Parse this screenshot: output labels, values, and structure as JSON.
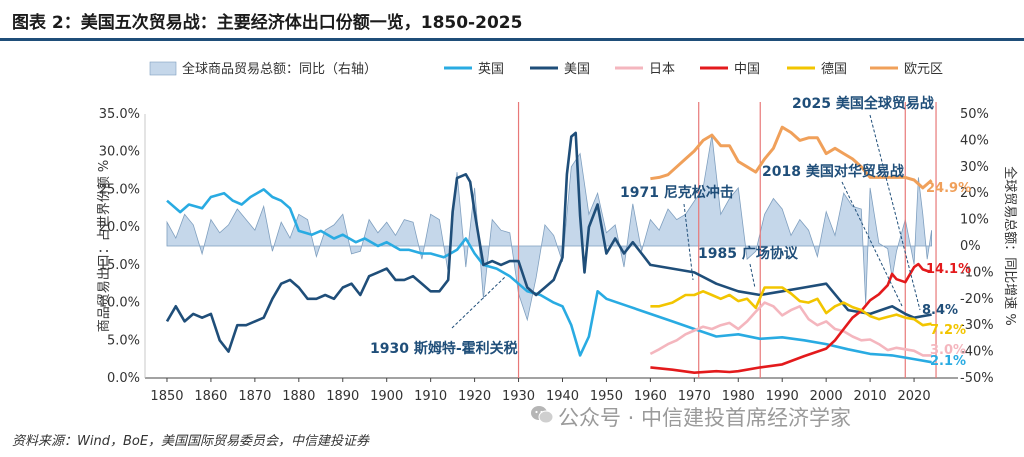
{
  "title": "图表 2：美国五次贸易战：主要经济体出口份额一览，1850-2025",
  "source": "资料来源：Wind，BoE，美国国际贸易委员会，中信建投证券",
  "watermark": "公众号 · 中信建投首席经济学家",
  "watermark_icon": "wechat-icon",
  "chart_data": {
    "type": "line",
    "x_range": [
      1845,
      2030
    ],
    "x_ticks": [
      "1850",
      "1860",
      "1870",
      "1880",
      "1890",
      "1900",
      "1910",
      "1920",
      "1930",
      "1940",
      "1950",
      "1960",
      "1970",
      "1980",
      "1990",
      "2000",
      "2010",
      "2020"
    ],
    "y_left": {
      "label": "商品贸易出口：占世界份额 %",
      "range": [
        0,
        35
      ],
      "ticks": [
        "0.0%",
        "5.0%",
        "10.0%",
        "15.0%",
        "20.0%",
        "25.0%",
        "30.0%",
        "35.0%"
      ]
    },
    "y_right": {
      "label": "全球贸易总额：同比增速 %",
      "range": [
        -50,
        50
      ],
      "ticks": [
        "-50%",
        "-40%",
        "-30%",
        "-20%",
        "-10%",
        "0%",
        "10%",
        "20%",
        "30%",
        "40%",
        "50%"
      ]
    },
    "legend": [
      "全球商品贸易总额：同比（右轴）",
      "英国",
      "美国",
      "日本",
      "中国",
      "德国",
      "欧元区"
    ],
    "colors": {
      "world_area": "#c5d7ea",
      "world_area_stroke": "#7f9fbf",
      "uk": "#29abe2",
      "us": "#1f4e79",
      "japan": "#f4b6be",
      "china": "#e31a1c",
      "germany": "#f2c500",
      "eurozone": "#f0a05a",
      "event_line": "#e87878",
      "annotation": "#1f4e79"
    },
    "series": [
      {
        "key": "world",
        "name": "全球商品贸易总额：同比（右轴）",
        "axis": "right",
        "type": "area",
        "x": [
          1850,
          1852,
          1854,
          1856,
          1858,
          1860,
          1862,
          1864,
          1866,
          1868,
          1870,
          1872,
          1874,
          1876,
          1878,
          1880,
          1882,
          1884,
          1886,
          1888,
          1890,
          1892,
          1894,
          1896,
          1898,
          1900,
          1902,
          1904,
          1906,
          1908,
          1910,
          1912,
          1914,
          1916,
          1918,
          1920,
          1922,
          1924,
          1926,
          1928,
          1930,
          1932,
          1934,
          1936,
          1938,
          1940,
          1942,
          1944,
          1946,
          1948,
          1950,
          1952,
          1954,
          1956,
          1958,
          1960,
          1962,
          1964,
          1966,
          1968,
          1970,
          1972,
          1974,
          1976,
          1978,
          1980,
          1982,
          1984,
          1986,
          1988,
          1990,
          1992,
          1994,
          1996,
          1998,
          2000,
          2002,
          2004,
          2006,
          2008,
          2009,
          2010,
          2012,
          2014,
          2015,
          2016,
          2018,
          2020,
          2021,
          2022,
          2023,
          2024
        ],
        "values": [
          9,
          3,
          12,
          8,
          -3,
          10,
          5,
          8,
          14,
          10,
          6,
          15,
          -2,
          9,
          3,
          12,
          10,
          -4,
          6,
          8,
          12,
          -3,
          -2,
          10,
          5,
          9,
          4,
          10,
          9,
          -5,
          12,
          10,
          -10,
          28,
          -8,
          22,
          -20,
          10,
          6,
          5,
          -18,
          -28,
          -12,
          8,
          4,
          -6,
          30,
          35,
          12,
          20,
          5,
          8,
          -8,
          16,
          -2,
          10,
          6,
          14,
          10,
          12,
          17,
          22,
          42,
          12,
          18,
          22,
          -5,
          -2,
          12,
          18,
          14,
          4,
          10,
          6,
          -4,
          13,
          4,
          20,
          15,
          14,
          -22,
          22,
          1,
          -1,
          -12,
          -2,
          10,
          -7,
          26,
          12,
          -5,
          6
        ]
      },
      {
        "key": "uk",
        "name": "英国",
        "axis": "left",
        "type": "line",
        "x": [
          1850,
          1853,
          1855,
          1858,
          1860,
          1863,
          1865,
          1867,
          1869,
          1872,
          1874,
          1876,
          1878,
          1880,
          1883,
          1885,
          1888,
          1890,
          1893,
          1895,
          1898,
          1900,
          1903,
          1905,
          1908,
          1910,
          1913,
          1916,
          1918,
          1920,
          1922,
          1925,
          1928,
          1930,
          1932,
          1935,
          1938,
          1940,
          1942,
          1944,
          1946,
          1948,
          1950,
          1955,
          1960,
          1965,
          1970,
          1975,
          1980,
          1985,
          1990,
          1995,
          2000,
          2005,
          2010,
          2015,
          2020,
          2024
        ],
        "values": [
          23.5,
          22.0,
          23.0,
          22.5,
          24.0,
          24.5,
          23.5,
          23.0,
          24.0,
          25.0,
          24.0,
          23.5,
          22.5,
          19.5,
          19.0,
          19.5,
          18.5,
          19.0,
          18.0,
          18.5,
          17.5,
          18.0,
          17.0,
          17.0,
          16.5,
          16.5,
          16.0,
          17.0,
          18.5,
          16.5,
          15.0,
          14.5,
          13.5,
          12.5,
          11.5,
          11.0,
          10.0,
          9.5,
          7.0,
          3.0,
          5.5,
          11.5,
          10.5,
          9.5,
          8.5,
          7.5,
          6.5,
          5.5,
          5.8,
          5.2,
          5.4,
          5.0,
          4.5,
          3.8,
          3.2,
          3.0,
          2.5,
          2.1
        ]
      },
      {
        "key": "us",
        "name": "美国",
        "axis": "left",
        "type": "line",
        "x": [
          1850,
          1852,
          1854,
          1856,
          1858,
          1860,
          1862,
          1864,
          1866,
          1868,
          1870,
          1872,
          1874,
          1876,
          1878,
          1880,
          1882,
          1884,
          1886,
          1888,
          1890,
          1892,
          1894,
          1896,
          1898,
          1900,
          1902,
          1904,
          1906,
          1908,
          1910,
          1912,
          1914,
          1915,
          1916,
          1918,
          1919,
          1920,
          1922,
          1924,
          1926,
          1928,
          1930,
          1932,
          1934,
          1936,
          1938,
          1940,
          1941,
          1942,
          1943,
          1944,
          1945,
          1946,
          1948,
          1950,
          1952,
          1954,
          1956,
          1958,
          1960,
          1965,
          1970,
          1975,
          1980,
          1985,
          1990,
          1995,
          2000,
          2005,
          2010,
          2015,
          2018,
          2020,
          2022,
          2024
        ],
        "values": [
          7.5,
          9.5,
          7.5,
          8.5,
          8.0,
          8.5,
          5.0,
          3.5,
          7.0,
          7.0,
          7.5,
          8.0,
          10.5,
          12.5,
          13.0,
          12.0,
          10.5,
          10.5,
          11.0,
          10.5,
          12.0,
          12.5,
          11.0,
          13.5,
          14.0,
          14.5,
          13.0,
          13.0,
          13.5,
          12.5,
          11.5,
          11.5,
          13.0,
          22.0,
          26.5,
          27.0,
          26.0,
          22.0,
          15.0,
          15.5,
          15.0,
          15.5,
          15.5,
          12.0,
          11.0,
          12.0,
          13.0,
          16.0,
          27.0,
          32.0,
          32.5,
          21.5,
          14.0,
          20.0,
          23.0,
          16.5,
          18.5,
          16.5,
          18.0,
          16.5,
          15.0,
          14.5,
          14.0,
          12.5,
          11.5,
          11.0,
          11.5,
          12.0,
          12.5,
          9.0,
          8.5,
          9.5,
          8.5,
          8.0,
          8.2,
          8.4
        ]
      },
      {
        "key": "japan",
        "name": "日本",
        "axis": "left",
        "type": "line",
        "x": [
          1960,
          1962,
          1964,
          1966,
          1968,
          1970,
          1972,
          1974,
          1976,
          1978,
          1980,
          1982,
          1984,
          1986,
          1988,
          1990,
          1992,
          1994,
          1996,
          1998,
          2000,
          2002,
          2004,
          2006,
          2008,
          2010,
          2012,
          2014,
          2016,
          2018,
          2020,
          2022,
          2024
        ],
        "values": [
          3.2,
          3.8,
          4.5,
          5.0,
          5.8,
          6.3,
          6.8,
          6.5,
          7.0,
          7.3,
          6.5,
          7.5,
          8.8,
          10.0,
          9.5,
          8.3,
          9.0,
          9.5,
          7.8,
          7.0,
          7.5,
          6.5,
          6.2,
          5.5,
          5.0,
          5.1,
          4.5,
          3.7,
          4.0,
          3.8,
          3.6,
          3.0,
          3.0
        ]
      },
      {
        "key": "china",
        "name": "中国",
        "axis": "left",
        "type": "line",
        "x": [
          1960,
          1965,
          1970,
          1975,
          1978,
          1980,
          1985,
          1990,
          1995,
          2000,
          2002,
          2004,
          2006,
          2008,
          2010,
          2012,
          2014,
          2015,
          2016,
          2018,
          2020,
          2021,
          2022,
          2023,
          2024
        ],
        "values": [
          1.4,
          1.1,
          0.7,
          0.9,
          0.8,
          0.9,
          1.4,
          1.8,
          2.9,
          3.9,
          5.0,
          6.5,
          8.0,
          8.9,
          10.3,
          11.1,
          12.3,
          13.8,
          13.1,
          12.7,
          14.7,
          15.1,
          14.4,
          14.2,
          14.1
        ]
      },
      {
        "key": "germany",
        "name": "德国",
        "axis": "left",
        "type": "line",
        "x": [
          1960,
          1962,
          1965,
          1968,
          1970,
          1972,
          1974,
          1976,
          1978,
          1980,
          1982,
          1984,
          1986,
          1988,
          1990,
          1992,
          1994,
          1996,
          1998,
          2000,
          2002,
          2004,
          2006,
          2008,
          2010,
          2012,
          2014,
          2016,
          2018,
          2020,
          2022,
          2024
        ],
        "values": [
          9.5,
          9.5,
          10.0,
          11.0,
          11.0,
          11.5,
          11.0,
          10.5,
          11.0,
          10.2,
          10.5,
          9.3,
          12.0,
          12.0,
          12.0,
          11.2,
          10.2,
          10.0,
          10.5,
          8.6,
          9.5,
          10.0,
          9.4,
          9.0,
          8.2,
          7.8,
          8.1,
          8.4,
          8.0,
          7.8,
          7.0,
          7.2
        ]
      },
      {
        "key": "eurozone",
        "name": "欧元区",
        "axis": "right",
        "type": "line",
        "x": [
          1960,
          1962,
          1964,
          1966,
          1968,
          1970,
          1972,
          1974,
          1976,
          1978,
          1980,
          1982,
          1984,
          1986,
          1988,
          1990,
          1992,
          1994,
          1996,
          1998,
          2000,
          2002,
          2004,
          2006,
          2008,
          2010,
          2012,
          2014,
          2016,
          2018,
          2020,
          2022,
          2024
        ],
        "values": [
          25.5,
          26,
          27,
          30,
          33,
          36,
          40,
          42,
          38,
          38,
          32,
          30,
          28,
          33,
          37,
          45,
          43,
          40,
          41,
          41,
          35,
          37,
          35,
          33,
          30,
          26,
          26,
          26,
          26,
          26,
          25,
          22,
          24.9
        ]
      }
    ],
    "end_labels": [
      {
        "series": "eurozone",
        "text": "24.9%"
      },
      {
        "series": "china",
        "text": "14.1%"
      },
      {
        "series": "us",
        "text": "8.4%"
      },
      {
        "series": "germany",
        "text": "7.2%"
      },
      {
        "series": "japan",
        "text": "3.0%"
      },
      {
        "series": "uk",
        "text": "2.1%"
      }
    ],
    "events": [
      {
        "year": 1930,
        "text": "1930 斯姆特-霍利关税"
      },
      {
        "year": 1971,
        "text": "1971 尼克松冲击"
      },
      {
        "year": 1985,
        "text": "1985 广场协议"
      },
      {
        "year": 2018,
        "text": "2018 美国对华贸易战"
      },
      {
        "year": 2025,
        "text": "2025 美国全球贸易战"
      }
    ]
  }
}
